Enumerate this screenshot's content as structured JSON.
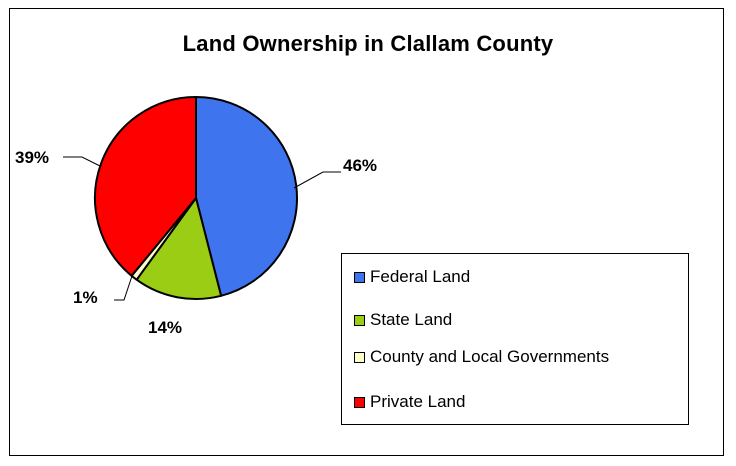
{
  "chart_data": {
    "type": "pie",
    "title": "Land Ownership in Clallam County",
    "slices": [
      {
        "name": "Federal Land",
        "value": 46,
        "label": "46%",
        "color": "#3f74ef"
      },
      {
        "name": "State Land",
        "value": 14,
        "label": "14%",
        "color": "#9acd14"
      },
      {
        "name": "County and Local Governments",
        "value": 1,
        "label": "1%",
        "color": "#ffffcc"
      },
      {
        "name": "Private Land",
        "value": 39,
        "label": "39%",
        "color": "#ff0000"
      }
    ],
    "legend": {
      "position": "right"
    }
  }
}
